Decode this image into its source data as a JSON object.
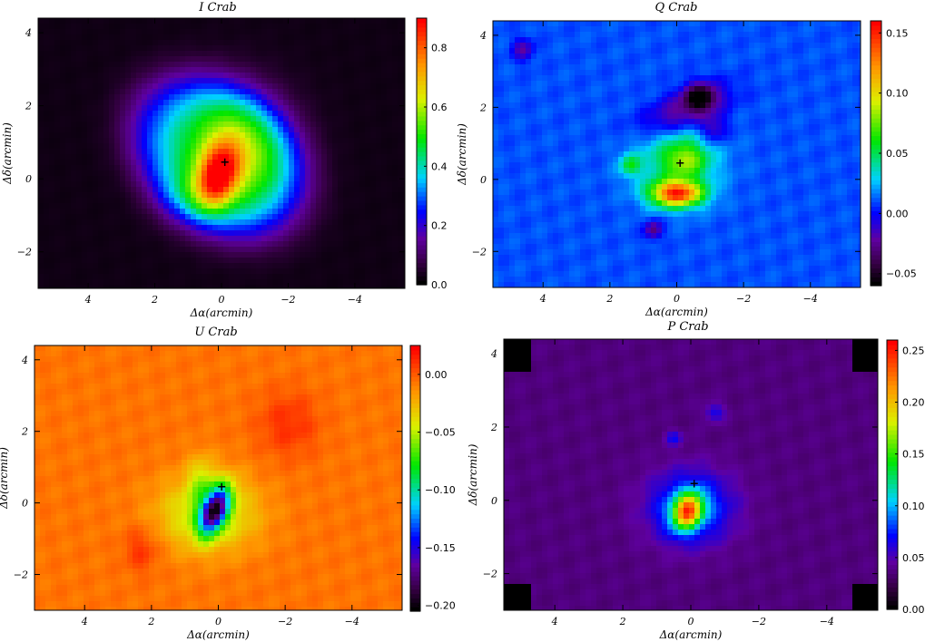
{
  "chart_data": [
    {
      "type": "heatmap",
      "title": "I Crab",
      "xlabel": "Δα(arcmin)",
      "ylabel": "Δδ(arcmin)",
      "xlim": [
        5.5,
        -5.5
      ],
      "ylim": [
        -3,
        4.4
      ],
      "x_ticks": [
        4,
        2,
        0,
        -2,
        -4
      ],
      "x_tick_labels": [
        "4",
        "2",
        "0",
        "−2",
        "−4"
      ],
      "y_ticks": [
        4,
        2,
        0,
        -2
      ],
      "y_tick_labels": [
        "4",
        "2",
        "0",
        "−2"
      ],
      "colorbar": {
        "range": [
          0.0,
          0.9
        ],
        "ticks": [
          0.0,
          0.2,
          0.4,
          0.6,
          0.8
        ],
        "tick_labels": [
          "0.0",
          "0.2",
          "0.4",
          "0.6",
          "0.8"
        ]
      },
      "marker": {
        "x": -0.1,
        "y": 0.45,
        "symbol": "+"
      },
      "background": 0.02,
      "blobs": [
        {
          "x": 0.1,
          "y": 0.6,
          "sx": 2.8,
          "sy": 2.0,
          "angle": 30,
          "amp": 0.34,
          "sharp": 4
        },
        {
          "x": -0.4,
          "y": 0.7,
          "sx": 1.6,
          "sy": 1.6,
          "angle": 0,
          "amp": 0.28
        },
        {
          "x": 0.1,
          "y": 0.1,
          "sx": 0.55,
          "sy": 0.85,
          "angle": 20,
          "amp": 0.42
        },
        {
          "x": 0.9,
          "y": -0.5,
          "sx": 1.0,
          "sy": 0.7,
          "angle": 0,
          "amp": 0.1
        }
      ]
    },
    {
      "type": "heatmap",
      "title": "Q Crab",
      "xlabel": "Δα(arcmin)",
      "ylabel": "Δδ(arcmin)",
      "xlim": [
        5.5,
        -5.5
      ],
      "ylim": [
        -3,
        4.4
      ],
      "x_ticks": [
        4,
        2,
        0,
        -2,
        -4
      ],
      "x_tick_labels": [
        "4",
        "2",
        "0",
        "−2",
        "−4"
      ],
      "y_ticks": [
        4,
        2,
        0,
        -2
      ],
      "y_tick_labels": [
        "4",
        "2",
        "0",
        "−2"
      ],
      "colorbar": {
        "range": [
          -0.06,
          0.16
        ],
        "ticks": [
          -0.05,
          0.0,
          0.05,
          0.1,
          0.15
        ],
        "tick_labels": [
          "−0.05",
          "0.00",
          "0.05",
          "0.10",
          "0.15"
        ]
      },
      "marker": {
        "x": -0.1,
        "y": 0.45,
        "symbol": "+"
      },
      "background": 0.01,
      "blobs": [
        {
          "x": 0.0,
          "y": 0.5,
          "sx": 1.2,
          "sy": 1.0,
          "angle": 0,
          "amp": 0.04
        },
        {
          "x": 0.0,
          "y": -0.4,
          "sx": 0.75,
          "sy": 0.35,
          "angle": 0,
          "amp": 0.13
        },
        {
          "x": -0.3,
          "y": 0.55,
          "sx": 0.6,
          "sy": 0.45,
          "angle": 0,
          "amp": 0.04
        },
        {
          "x": 1.4,
          "y": 0.4,
          "sx": 0.3,
          "sy": 0.3,
          "angle": 0,
          "amp": 0.04
        },
        {
          "x": -0.7,
          "y": 2.3,
          "sx": 0.45,
          "sy": 0.35,
          "angle": 0,
          "amp": -0.06
        },
        {
          "x": -0.2,
          "y": 1.9,
          "sx": 1.3,
          "sy": 0.5,
          "angle": -20,
          "amp": -0.04
        },
        {
          "x": -1.1,
          "y": 1.4,
          "sx": 0.4,
          "sy": 0.4,
          "angle": 0,
          "amp": -0.03
        },
        {
          "x": 0.7,
          "y": -1.4,
          "sx": 0.25,
          "sy": 0.25,
          "angle": 0,
          "amp": -0.04
        },
        {
          "x": 4.6,
          "y": 3.6,
          "sx": 0.3,
          "sy": 0.3,
          "angle": 0,
          "amp": -0.03
        }
      ]
    },
    {
      "type": "heatmap",
      "title": "U Crab",
      "xlabel": "Δα(arcmin)",
      "ylabel": "Δδ(arcmin)",
      "xlim": [
        5.5,
        -5.5
      ],
      "ylim": [
        -3,
        4.4
      ],
      "x_ticks": [
        4,
        2,
        0,
        -2,
        -4
      ],
      "x_tick_labels": [
        "4",
        "2",
        "0",
        "−2",
        "−4"
      ],
      "y_ticks": [
        4,
        2,
        0,
        -2
      ],
      "y_tick_labels": [
        "4",
        "2",
        "0",
        "−2"
      ],
      "colorbar": {
        "range": [
          -0.205,
          0.025
        ],
        "ticks": [
          -0.2,
          -0.15,
          -0.1,
          -0.05,
          0.0
        ],
        "tick_labels": [
          "−0.20",
          "−0.15",
          "−0.10",
          "−0.05",
          "0.00"
        ]
      },
      "marker": {
        "x": -0.1,
        "y": 0.45,
        "symbol": "+"
      },
      "background": -0.005,
      "blobs": [
        {
          "x": 0.3,
          "y": -0.3,
          "sx": 1.4,
          "sy": 1.0,
          "angle": 0,
          "amp": -0.05
        },
        {
          "x": 0.5,
          "y": 0.6,
          "sx": 0.4,
          "sy": 0.7,
          "angle": 0,
          "amp": -0.03
        },
        {
          "x": 0.1,
          "y": -0.2,
          "sx": 0.35,
          "sy": 0.7,
          "angle": 25,
          "amp": -0.15
        },
        {
          "x": -2.1,
          "y": 2.2,
          "sx": 0.9,
          "sy": 0.9,
          "angle": 0,
          "amp": 0.018
        },
        {
          "x": 2.3,
          "y": -1.3,
          "sx": 0.5,
          "sy": 0.6,
          "angle": 0,
          "amp": 0.018
        }
      ]
    },
    {
      "type": "heatmap",
      "title": "P Crab",
      "xlabel": "Δα(arcmin)",
      "ylabel": "Δδ(arcmin)",
      "xlim": [
        5.5,
        -5.5
      ],
      "ylim": [
        -3,
        4.4
      ],
      "x_ticks": [
        4,
        2,
        0,
        -2,
        -4
      ],
      "x_tick_labels": [
        "4",
        "2",
        "0",
        "−2",
        "−4"
      ],
      "y_ticks": [
        4,
        2,
        0,
        -2
      ],
      "y_tick_labels": [
        "4",
        "2",
        "0",
        "−2"
      ],
      "colorbar": {
        "range": [
          0.0,
          0.26
        ],
        "ticks": [
          0.0,
          0.05,
          0.1,
          0.15,
          0.2,
          0.25
        ],
        "tick_labels": [
          "0.00",
          "0.05",
          "0.10",
          "0.15",
          "0.20",
          "0.25"
        ]
      },
      "marker": {
        "x": -0.1,
        "y": 0.45,
        "symbol": "+"
      },
      "background": 0.035,
      "corners_dark": true,
      "blobs": [
        {
          "x": 0.0,
          "y": -0.2,
          "sx": 1.2,
          "sy": 0.95,
          "angle": 0,
          "amp": 0.06
        },
        {
          "x": 0.1,
          "y": -0.3,
          "sx": 0.4,
          "sy": 0.5,
          "angle": 30,
          "amp": 0.16
        },
        {
          "x": -0.7,
          "y": 2.4,
          "sx": 0.3,
          "sy": 0.25,
          "angle": 0,
          "amp": 0.03
        },
        {
          "x": 0.5,
          "y": 1.7,
          "sx": 0.25,
          "sy": 0.2,
          "angle": 0,
          "amp": 0.03
        }
      ]
    }
  ]
}
